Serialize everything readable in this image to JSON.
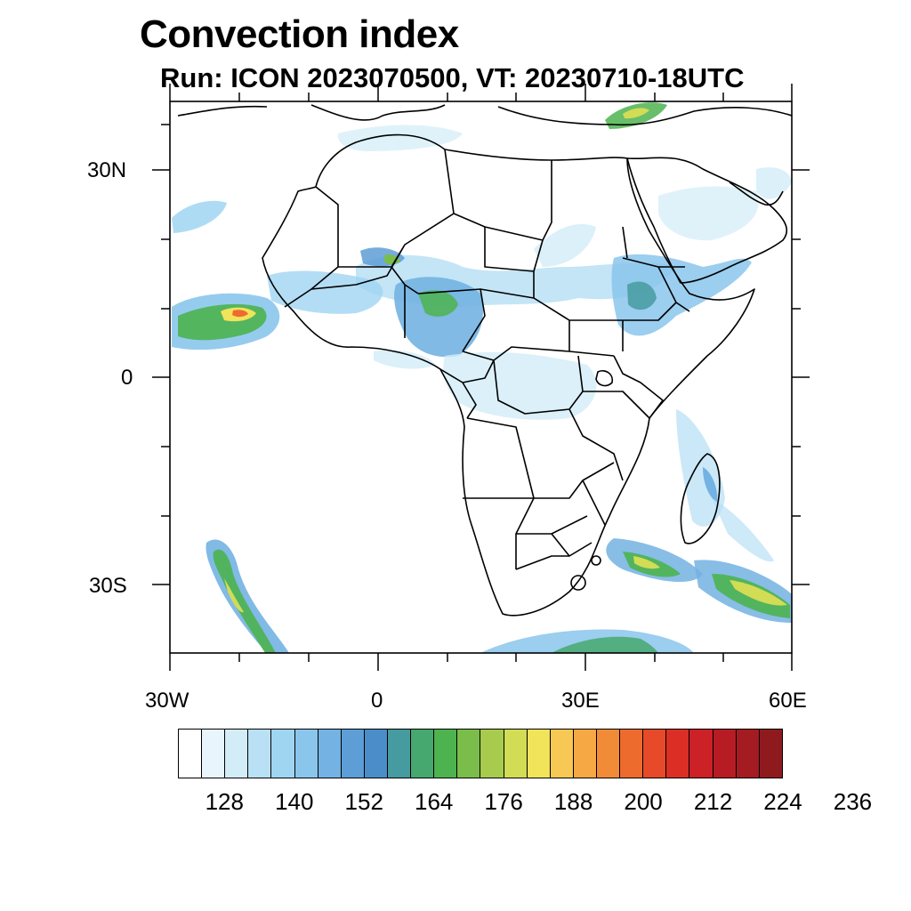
{
  "title": "Convection index",
  "subtitle": "Run: ICON 2023070500,  VT: 20230710-18UTC",
  "axes": {
    "lat_labels": [
      "30N",
      "0",
      "30S"
    ],
    "lon_labels": [
      "30W",
      "0",
      "30E",
      "60E"
    ],
    "extent": {
      "lon_min": -30,
      "lon_max": 60,
      "lat_min": -40,
      "lat_max": 40
    }
  },
  "colorbar": {
    "colors": [
      "#ffffff",
      "#e8f5fc",
      "#d2ecf8",
      "#b9e0f5",
      "#a0d5f2",
      "#8ac6ec",
      "#73b2e2",
      "#5e9ed6",
      "#4a8dc8",
      "#459b9f",
      "#46a86e",
      "#4db34f",
      "#7bbd4b",
      "#a7cc4d",
      "#d3dc55",
      "#f1e35a",
      "#f7c853",
      "#f5a844",
      "#f28b38",
      "#ee6b2e",
      "#e64a29",
      "#db2f26",
      "#cb2127",
      "#b71c24",
      "#a51b22",
      "#8f1a1e"
    ],
    "tick_labels": [
      "128",
      "140",
      "152",
      "164",
      "176",
      "188",
      "200",
      "212",
      "224",
      "236"
    ]
  },
  "icons": [
    "south-arrow-icon"
  ]
}
